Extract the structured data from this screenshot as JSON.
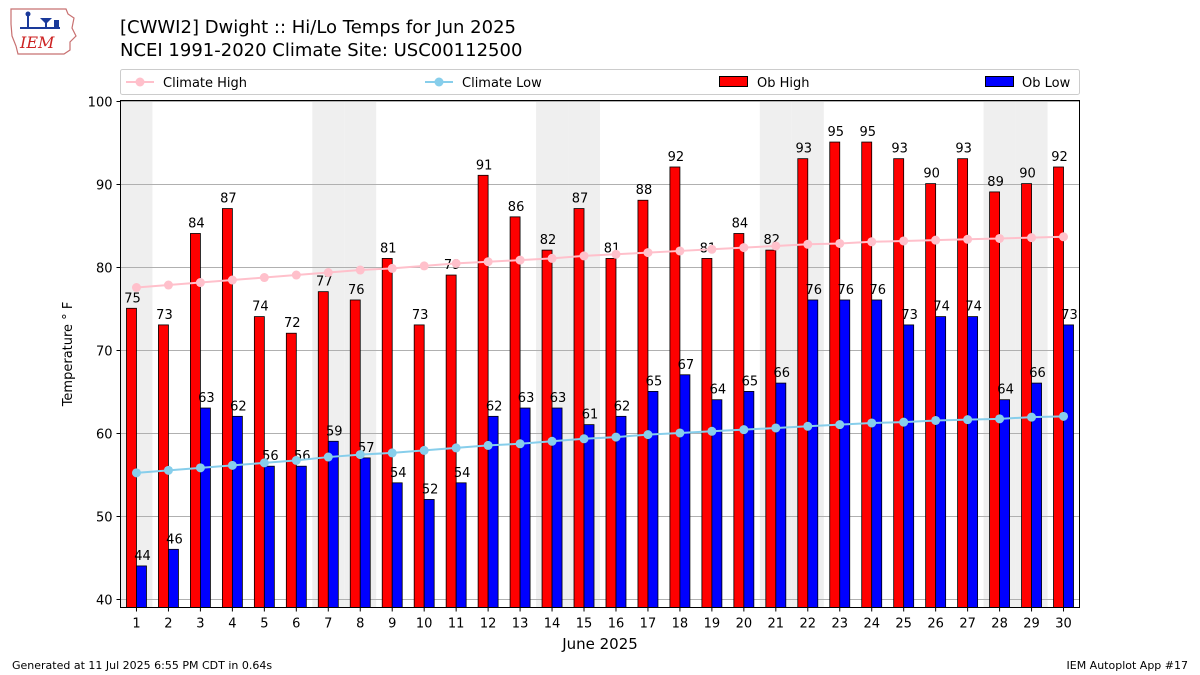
{
  "header": {
    "title_line1": "[CWWI2] Dwight :: Hi/Lo Temps for Jun 2025",
    "title_line2": "NCEI 1991-2020 Climate Site: USC00112500",
    "logo_text": "IEM"
  },
  "footer": {
    "generated": "Generated at 11 Jul 2025 6:55 PM CDT in 0.64s",
    "app": "IEM Autoplot App #17"
  },
  "colors": {
    "ob_high": "#ff0000",
    "ob_low": "#0000ff",
    "climate_high": "#ffc0cb",
    "climate_low": "#87ceeb",
    "weekend_band": "#efefef",
    "grid": "#b0b0b0"
  },
  "chart_data": {
    "type": "bar",
    "xlabel": "June 2025",
    "ylabel": "Temperature ° F",
    "ylim": [
      39,
      100
    ],
    "yticks": [
      40,
      50,
      60,
      70,
      80,
      90,
      100
    ],
    "grid": true,
    "legend_position": "top",
    "categories": [
      "1",
      "2",
      "3",
      "4",
      "5",
      "6",
      "7",
      "8",
      "9",
      "10",
      "11",
      "12",
      "13",
      "14",
      "15",
      "16",
      "17",
      "18",
      "19",
      "20",
      "21",
      "22",
      "23",
      "24",
      "25",
      "26",
      "27",
      "28",
      "29",
      "30"
    ],
    "weekend_days": [
      1,
      7,
      8,
      14,
      15,
      21,
      22,
      28,
      29
    ],
    "series": [
      {
        "name": "Climate High",
        "kind": "line",
        "values": [
          77.5,
          77.8,
          78.1,
          78.4,
          78.7,
          79.0,
          79.3,
          79.6,
          79.8,
          80.1,
          80.4,
          80.6,
          80.8,
          81.0,
          81.3,
          81.5,
          81.7,
          81.9,
          82.1,
          82.3,
          82.5,
          82.7,
          82.8,
          83.0,
          83.1,
          83.2,
          83.3,
          83.4,
          83.5,
          83.6
        ]
      },
      {
        "name": "Climate Low",
        "kind": "line",
        "values": [
          55.2,
          55.5,
          55.8,
          56.1,
          56.4,
          56.7,
          57.1,
          57.4,
          57.6,
          57.9,
          58.2,
          58.5,
          58.7,
          59.0,
          59.3,
          59.5,
          59.8,
          60.0,
          60.2,
          60.4,
          60.6,
          60.8,
          61.0,
          61.2,
          61.3,
          61.5,
          61.6,
          61.7,
          61.9,
          62.0
        ]
      },
      {
        "name": "Ob High",
        "kind": "bar",
        "values": [
          75,
          73,
          84,
          87,
          74,
          72,
          77,
          76,
          81,
          73,
          79,
          91,
          86,
          82,
          87,
          81,
          88,
          92,
          81,
          84,
          82,
          93,
          95,
          95,
          93,
          90,
          93,
          89,
          90,
          92
        ]
      },
      {
        "name": "Ob Low",
        "kind": "bar",
        "values": [
          44,
          46,
          63,
          62,
          56,
          56,
          59,
          57,
          54,
          52,
          54,
          62,
          63,
          63,
          61,
          62,
          65,
          67,
          64,
          65,
          66,
          76,
          76,
          76,
          73,
          74,
          74,
          64,
          66,
          73
        ]
      }
    ]
  }
}
